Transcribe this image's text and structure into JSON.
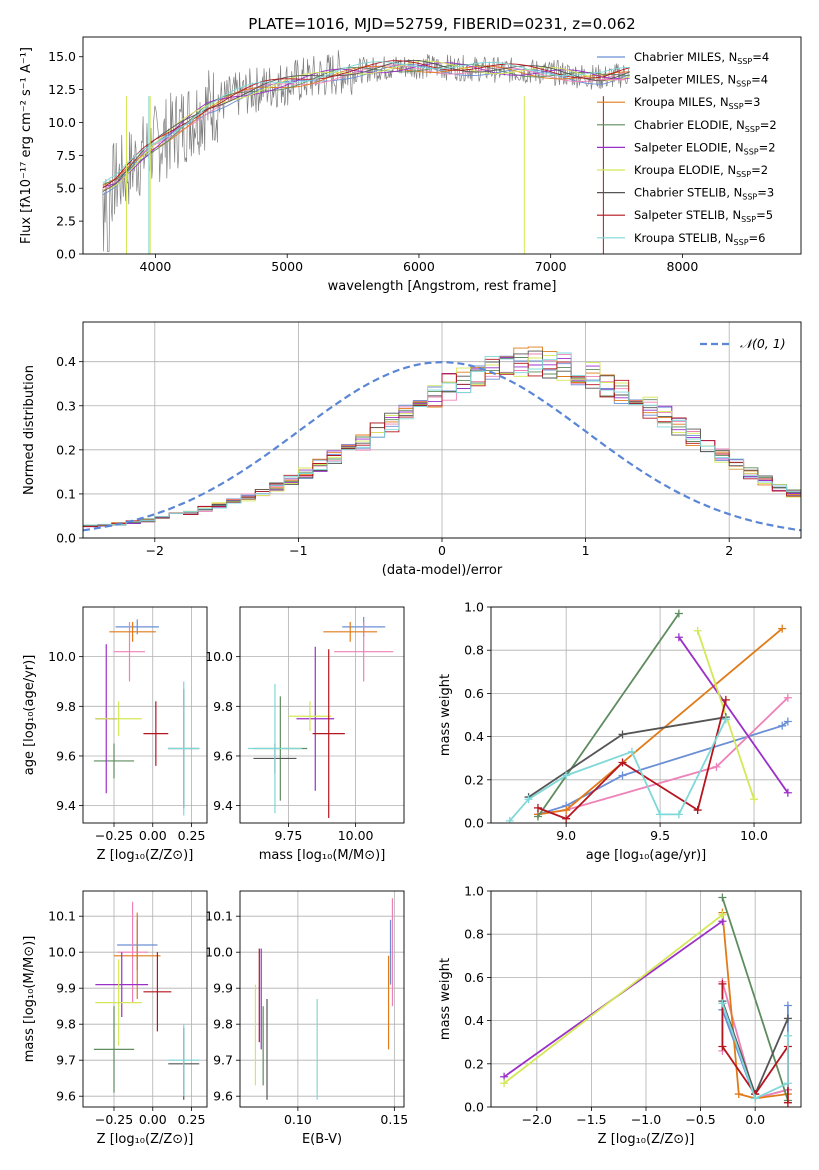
{
  "figure_title": "PLATE=1016, MJD=52759, FIBERID=0231, z=0.062",
  "chart_data": [
    {
      "id": "spectrum",
      "type": "line",
      "xlabel": "wavelength [Angstrom, rest frame]",
      "ylabel": "Flux [fλ10⁻¹⁷ erg cm⁻² s⁻¹ A⁻¹]",
      "xlim": [
        3450,
        8900
      ],
      "ylim": [
        0,
        16.5
      ],
      "xticks": [
        4000,
        5000,
        6000,
        7000,
        8000
      ],
      "yticks": [
        0.0,
        2.5,
        5.0,
        7.5,
        10.0,
        12.5,
        15.0
      ],
      "grid": false,
      "legend_position": "top-right",
      "data_series": {
        "name": "data",
        "color": "#808080",
        "x": [
          3600,
          3700,
          3800,
          3900,
          4000,
          4100,
          4200,
          4300,
          4400,
          4600,
          4800,
          5000,
          5200,
          5400,
          5600,
          5800,
          6000,
          6200,
          6400,
          6600,
          6800,
          7000,
          7200,
          7400,
          7600
        ],
        "y": [
          5.0,
          5.5,
          6.5,
          7.5,
          8.3,
          9.0,
          9.8,
          10.5,
          11.2,
          12.0,
          12.6,
          13.0,
          13.4,
          13.8,
          14.0,
          14.2,
          14.3,
          14.2,
          14.1,
          14.0,
          13.9,
          13.8,
          13.6,
          13.4,
          13.7
        ]
      },
      "legend": [
        {
          "label": "Chabrier MILES, N",
          "sub": "SSP",
          "suffix": "=4",
          "color": "#6a8fd6"
        },
        {
          "label": "Salpeter MILES, N",
          "sub": "SSP",
          "suffix": "=4",
          "color": "#ee82b8"
        },
        {
          "label": "Kroupa MILES, N",
          "sub": "SSP",
          "suffix": "=3",
          "color": "#e07b1a"
        },
        {
          "label": "Chabrier ELODIE, N",
          "sub": "SSP",
          "suffix": "=2",
          "color": "#5e8c5e"
        },
        {
          "label": "Salpeter ELODIE, N",
          "sub": "SSP",
          "suffix": "=2",
          "color": "#9b30c8"
        },
        {
          "label": "Kroupa ELODIE, N",
          "sub": "SSP",
          "suffix": "=2",
          "color": "#d4e857"
        },
        {
          "label": "Chabrier STELIB, N",
          "sub": "SSP",
          "suffix": "=3",
          "color": "#555555"
        },
        {
          "label": "Salpeter STELIB, N",
          "sub": "SSP",
          "suffix": "=5",
          "color": "#b5151e"
        },
        {
          "label": "Kroupa STELIB, N",
          "sub": "SSP",
          "suffix": "=6",
          "color": "#7fd8d8"
        }
      ]
    },
    {
      "id": "residuals",
      "type": "histogram",
      "xlabel": "(data-model)/error",
      "ylabel": "Normed distribution",
      "xlim": [
        -2.5,
        2.5
      ],
      "ylim": [
        0,
        0.49
      ],
      "xticks": [
        -2,
        -1,
        0,
        1,
        2
      ],
      "xtick_labels": [
        "−2",
        "−1",
        "0",
        "1",
        "2"
      ],
      "yticks": [
        0.0,
        0.1,
        0.2,
        0.3,
        0.4
      ],
      "grid": true,
      "legend_position": "top-right",
      "curve": {
        "label": "𝒩(0, 1)",
        "color": "#5b86d6",
        "mu": 0,
        "sigma": 1
      },
      "bin_width": 0.1,
      "bin_start": -2.5,
      "base_profile": [
        0.028,
        0.029,
        0.032,
        0.036,
        0.04,
        0.046,
        0.052,
        0.058,
        0.066,
        0.074,
        0.082,
        0.092,
        0.103,
        0.116,
        0.131,
        0.148,
        0.165,
        0.182,
        0.199,
        0.217,
        0.24,
        0.262,
        0.284,
        0.305,
        0.325,
        0.343,
        0.36,
        0.375,
        0.388,
        0.396,
        0.401,
        0.4,
        0.397,
        0.391,
        0.38,
        0.366,
        0.351,
        0.334,
        0.316,
        0.296,
        0.275,
        0.252,
        0.23,
        0.208,
        0.187,
        0.166,
        0.147,
        0.13,
        0.114,
        0.1,
        0.087
      ],
      "series_colors": [
        "#6a8fd6",
        "#ee82b8",
        "#e07b1a",
        "#5e8c5e",
        "#9b30c8",
        "#d4e857",
        "#555555",
        "#b5151e",
        "#7fd8d8"
      ]
    },
    {
      "id": "age-vs-Z",
      "type": "errorbar",
      "xlabel": "Z [log₁₀(Z/Z⊙)]",
      "ylabel": "age  [log₁₀(age/yr)]",
      "xlim": [
        -0.45,
        0.35
      ],
      "ylim": [
        9.33,
        10.2
      ],
      "xticks": [
        -0.25,
        0.0,
        0.25
      ],
      "xtick_labels": [
        "−0.25",
        "0.00",
        "0.25"
      ],
      "yticks": [
        9.4,
        9.6,
        9.8,
        10.0
      ],
      "grid": true,
      "points": [
        {
          "x": -0.1,
          "xerr": 0.14,
          "y": 10.12,
          "yerr": 0.03,
          "color": "#6a8fd6"
        },
        {
          "x": -0.15,
          "xerr": 0.1,
          "y": 10.02,
          "yerr": 0.12,
          "color": "#ee82b8"
        },
        {
          "x": -0.13,
          "xerr": 0.15,
          "y": 10.1,
          "yerr": 0.04,
          "color": "#e07b1a"
        },
        {
          "x": -0.25,
          "xerr": 0.13,
          "y": 9.58,
          "yerr": 0.07,
          "color": "#5e8c5e"
        },
        {
          "x": -0.3,
          "xerr": 0.07,
          "y": 9.75,
          "yerr": 0.3,
          "color": "#9b30c8"
        },
        {
          "x": -0.22,
          "xerr": 0.15,
          "y": 9.75,
          "yerr": 0.07,
          "color": "#d4e857"
        },
        {
          "x": 0.2,
          "xerr": 0.1,
          "y": 9.63,
          "yerr": 0.24,
          "color": "#555555"
        },
        {
          "x": 0.02,
          "xerr": 0.08,
          "y": 9.69,
          "yerr": 0.13,
          "color": "#b5151e"
        },
        {
          "x": 0.2,
          "xerr": 0.1,
          "y": 9.63,
          "yerr": 0.27,
          "color": "#7fd8d8"
        }
      ]
    },
    {
      "id": "age-vs-mass",
      "type": "errorbar",
      "xlabel": "mass [log₁₀(M/M⊙)]",
      "ylabel": "",
      "xlim": [
        9.57,
        10.18
      ],
      "ylim": [
        9.33,
        10.2
      ],
      "xticks": [
        9.75,
        10.0
      ],
      "xtick_labels": [
        "9.75",
        "10.00"
      ],
      "yticks": [
        9.4,
        9.6,
        9.8,
        10.0
      ],
      "grid": true,
      "points": [
        {
          "x": 10.03,
          "xerr": 0.08,
          "y": 10.12,
          "yerr": 0.04,
          "color": "#6a8fd6"
        },
        {
          "x": 10.03,
          "xerr": 0.11,
          "y": 10.02,
          "yerr": 0.12,
          "color": "#ee82b8"
        },
        {
          "x": 9.98,
          "xerr": 0.1,
          "y": 10.1,
          "yerr": 0.04,
          "color": "#e07b1a"
        },
        {
          "x": 9.72,
          "xerr": 0.1,
          "y": 9.63,
          "yerr": 0.21,
          "color": "#5e8c5e"
        },
        {
          "x": 9.85,
          "xerr": 0.07,
          "y": 9.75,
          "yerr": 0.29,
          "color": "#9b30c8"
        },
        {
          "x": 9.83,
          "xerr": 0.08,
          "y": 9.76,
          "yerr": 0.06,
          "color": "#d4e857"
        },
        {
          "x": 9.7,
          "xerr": 0.08,
          "y": 9.59,
          "yerr": 0.06,
          "color": "#555555"
        },
        {
          "x": 9.9,
          "xerr": 0.06,
          "y": 9.69,
          "yerr": 0.34,
          "color": "#b5151e"
        },
        {
          "x": 9.7,
          "xerr": 0.1,
          "y": 9.63,
          "yerr": 0.26,
          "color": "#7fd8d8"
        }
      ]
    },
    {
      "id": "weight-vs-age",
      "type": "line",
      "xlabel": "age  [log₁₀(age/yr)]",
      "ylabel": "mass weight",
      "xlim": [
        8.6,
        10.25
      ],
      "ylim": [
        0,
        1.0
      ],
      "xticks": [
        9.0,
        9.5,
        10.0
      ],
      "yticks": [
        0.0,
        0.2,
        0.4,
        0.6,
        0.8,
        1.0
      ],
      "grid": true,
      "series": [
        {
          "color": "#6a8fd6",
          "x": [
            8.85,
            9.0,
            9.3,
            10.15,
            10.18
          ],
          "y": [
            0.04,
            0.08,
            0.22,
            0.45,
            0.47
          ]
        },
        {
          "color": "#ee82b8",
          "x": [
            8.85,
            9.0,
            9.8,
            10.18
          ],
          "y": [
            0.04,
            0.06,
            0.26,
            0.58
          ]
        },
        {
          "color": "#e07b1a",
          "x": [
            8.85,
            9.0,
            10.15
          ],
          "y": [
            0.04,
            0.06,
            0.9
          ]
        },
        {
          "color": "#5e8c5e",
          "x": [
            8.85,
            9.6
          ],
          "y": [
            0.03,
            0.97
          ]
        },
        {
          "color": "#9b30c8",
          "x": [
            9.6,
            10.18
          ],
          "y": [
            0.86,
            0.14
          ]
        },
        {
          "color": "#d4e857",
          "x": [
            9.7,
            10.0
          ],
          "y": [
            0.89,
            0.11
          ]
        },
        {
          "color": "#555555",
          "x": [
            8.8,
            9.3,
            9.85
          ],
          "y": [
            0.12,
            0.41,
            0.49
          ]
        },
        {
          "color": "#b5151e",
          "x": [
            8.85,
            9.0,
            9.3,
            9.7,
            9.85
          ],
          "y": [
            0.07,
            0.02,
            0.28,
            0.06,
            0.57
          ]
        },
        {
          "color": "#7fd8d8",
          "x": [
            8.7,
            8.8,
            9.0,
            9.35,
            9.5,
            9.6,
            9.85
          ],
          "y": [
            0.01,
            0.11,
            0.22,
            0.33,
            0.04,
            0.04,
            0.48
          ]
        }
      ]
    },
    {
      "id": "mass-vs-Z",
      "type": "errorbar",
      "xlabel": "Z [log₁₀(Z/Z⊙)]",
      "ylabel": "mass [log₁₀(M/M⊙)]",
      "xlim": [
        -0.45,
        0.35
      ],
      "ylim": [
        9.57,
        10.17
      ],
      "xticks": [
        -0.25,
        0.0,
        0.25
      ],
      "xtick_labels": [
        "−0.25",
        "0.00",
        "0.25"
      ],
      "yticks": [
        9.6,
        9.7,
        9.8,
        9.9,
        10.0,
        10.1
      ],
      "grid": true,
      "points": [
        {
          "x": -0.1,
          "xerr": 0.13,
          "y": 10.02,
          "yerr": 0.07,
          "color": "#6a8fd6"
        },
        {
          "x": -0.13,
          "xerr": 0.1,
          "y": 10.0,
          "yerr": 0.14,
          "color": "#ee82b8"
        },
        {
          "x": -0.1,
          "xerr": 0.15,
          "y": 9.99,
          "yerr": 0.12,
          "color": "#e07b1a"
        },
        {
          "x": -0.25,
          "xerr": 0.13,
          "y": 9.73,
          "yerr": 0.12,
          "color": "#5e8c5e"
        },
        {
          "x": -0.2,
          "xerr": 0.17,
          "y": 9.91,
          "yerr": 0.09,
          "color": "#9b30c8"
        },
        {
          "x": -0.22,
          "xerr": 0.15,
          "y": 9.86,
          "yerr": 0.12,
          "color": "#d4e857"
        },
        {
          "x": 0.2,
          "xerr": 0.1,
          "y": 9.69,
          "yerr": 0.1,
          "color": "#555555"
        },
        {
          "x": 0.03,
          "xerr": 0.09,
          "y": 9.89,
          "yerr": 0.11,
          "color": "#b5151e"
        },
        {
          "x": 0.2,
          "xerr": 0.1,
          "y": 9.7,
          "yerr": 0.1,
          "color": "#7fd8d8"
        }
      ]
    },
    {
      "id": "mass-vs-EBV",
      "type": "errorbar",
      "xlabel": "E(B-V)",
      "ylabel": "",
      "xlim": [
        0.07,
        0.155
      ],
      "ylim": [
        9.57,
        10.17
      ],
      "xticks": [
        0.1,
        0.15
      ],
      "xtick_labels": [
        "0.10",
        "0.15"
      ],
      "yticks": [
        9.6,
        9.7,
        9.8,
        9.9,
        10.0,
        10.1
      ],
      "grid": true,
      "points": [
        {
          "x": 0.148,
          "xerr": 0,
          "y": 10.0,
          "yerr": 0.09,
          "color": "#6a8fd6"
        },
        {
          "x": 0.149,
          "xerr": 0,
          "y": 10.0,
          "yerr": 0.15,
          "color": "#ee82b8"
        },
        {
          "x": 0.147,
          "xerr": 0,
          "y": 9.86,
          "yerr": 0.13,
          "color": "#e07b1a"
        },
        {
          "x": 0.082,
          "xerr": 0,
          "y": 9.74,
          "yerr": 0.11,
          "color": "#5e8c5e"
        },
        {
          "x": 0.081,
          "xerr": 0,
          "y": 9.87,
          "yerr": 0.14,
          "color": "#9b30c8"
        },
        {
          "x": 0.078,
          "xerr": 0,
          "y": 9.77,
          "yerr": 0.14,
          "color": "#d4e857"
        },
        {
          "x": 0.084,
          "xerr": 0,
          "y": 9.73,
          "yerr": 0.14,
          "color": "#555555"
        },
        {
          "x": 0.08,
          "xerr": 0,
          "y": 9.88,
          "yerr": 0.13,
          "color": "#b5151e"
        },
        {
          "x": 0.11,
          "xerr": 0,
          "y": 9.73,
          "yerr": 0.14,
          "color": "#7fd8d8"
        }
      ]
    },
    {
      "id": "weight-vs-Z",
      "type": "line",
      "xlabel": "Z [log₁₀(Z/Z⊙)]",
      "ylabel": "mass weight",
      "xlim": [
        -2.42,
        0.42
      ],
      "ylim": [
        0,
        1.0
      ],
      "xticks": [
        -2.0,
        -1.5,
        -1.0,
        -0.5,
        0.0
      ],
      "xtick_labels": [
        "−2.0",
        "−1.5",
        "−1.0",
        "−0.5",
        "0.0"
      ],
      "yticks": [
        0.0,
        0.2,
        0.4,
        0.6,
        0.8,
        1.0
      ],
      "grid": true,
      "series": [
        {
          "color": "#6a8fd6",
          "x": [
            -0.3,
            0.0,
            0.3,
            0.3
          ],
          "y": [
            0.45,
            0.04,
            0.08,
            0.47
          ]
        },
        {
          "color": "#ee82b8",
          "x": [
            -0.3,
            -0.3,
            0.0,
            0.3
          ],
          "y": [
            0.26,
            0.58,
            0.04,
            0.08
          ]
        },
        {
          "color": "#e07b1a",
          "x": [
            -0.3,
            -0.15,
            0.0,
            0.3
          ],
          "y": [
            0.9,
            0.06,
            0.04,
            0.06
          ]
        },
        {
          "color": "#5e8c5e",
          "x": [
            -0.3,
            0.3
          ],
          "y": [
            0.97,
            0.03
          ]
        },
        {
          "color": "#9b30c8",
          "x": [
            -2.3,
            -0.3
          ],
          "y": [
            0.14,
            0.86
          ]
        },
        {
          "color": "#d4e857",
          "x": [
            -2.3,
            -0.3
          ],
          "y": [
            0.11,
            0.89
          ]
        },
        {
          "color": "#555555",
          "x": [
            -0.3,
            0.0,
            0.3
          ],
          "y": [
            0.49,
            0.06,
            0.41
          ]
        },
        {
          "color": "#b5151e",
          "x": [
            -0.3,
            -0.3,
            0.0,
            0.3,
            0.3
          ],
          "y": [
            0.57,
            0.28,
            0.06,
            0.28,
            0.02
          ]
        },
        {
          "color": "#7fd8d8",
          "x": [
            -0.3,
            0.0,
            0.3,
            0.3
          ],
          "y": [
            0.48,
            0.04,
            0.11,
            0.33
          ]
        }
      ]
    }
  ]
}
